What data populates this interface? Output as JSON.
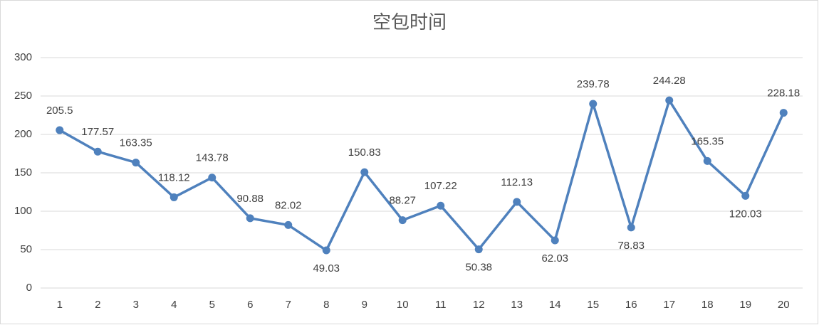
{
  "chart_data": {
    "type": "line",
    "title": "空包时间",
    "categories": [
      "1",
      "2",
      "3",
      "4",
      "5",
      "6",
      "7",
      "8",
      "9",
      "10",
      "11",
      "12",
      "13",
      "14",
      "15",
      "16",
      "17",
      "18",
      "19",
      "20"
    ],
    "series": [
      {
        "name": "空包时间",
        "color": "#4f81bd",
        "values": [
          205.5,
          177.57,
          163.35,
          118.12,
          143.78,
          90.88,
          82.02,
          49.03,
          150.83,
          88.27,
          107.22,
          50.38,
          112.13,
          62.03,
          239.78,
          78.83,
          244.28,
          165.35,
          120.03,
          228.18
        ]
      }
    ],
    "ylim": [
      0,
      300
    ],
    "yticks": [
      0,
      50,
      100,
      150,
      200,
      250,
      300
    ],
    "grid": true
  }
}
